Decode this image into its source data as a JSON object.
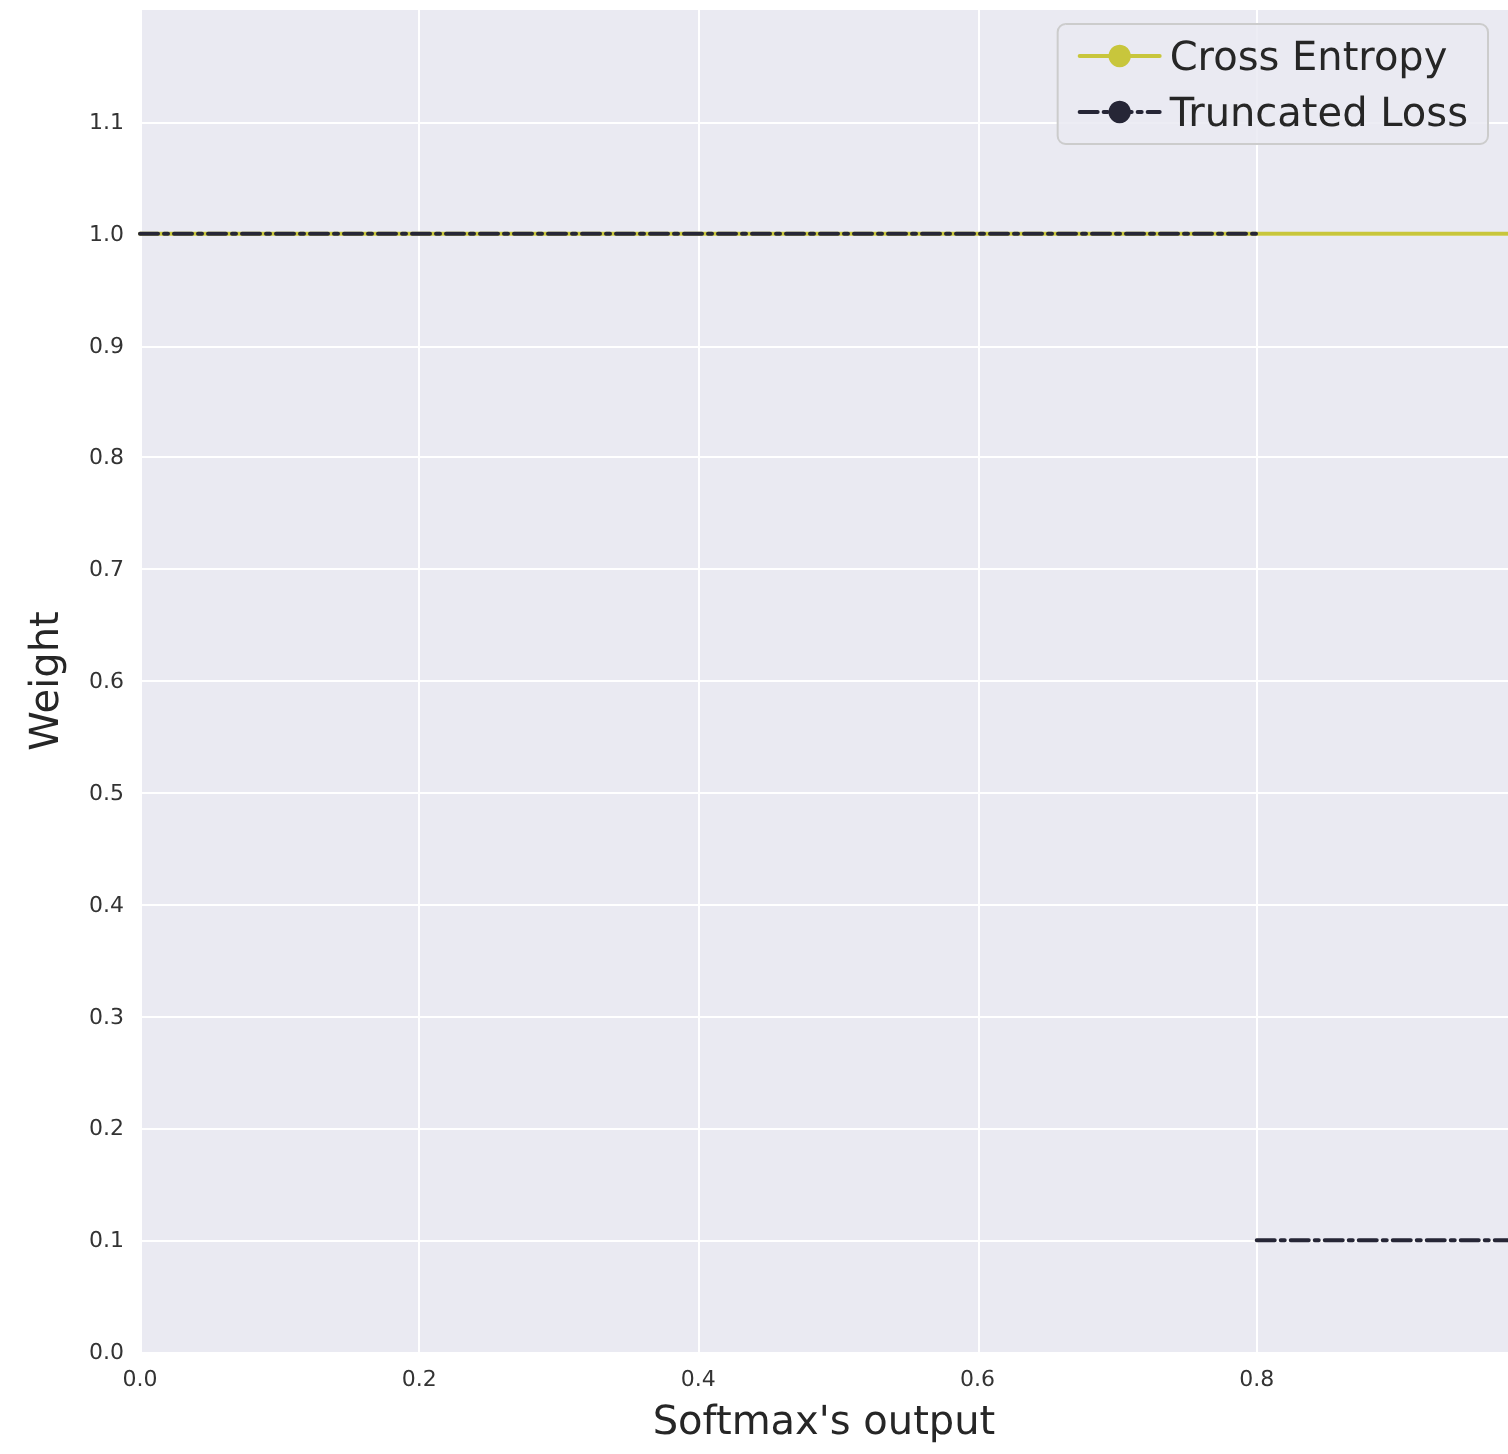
{
  "chart_data": {
    "type": "line",
    "xlabel": "Softmax's output",
    "ylabel": "Weight",
    "xlim": [
      0,
      0.98
    ],
    "xticks": [
      {
        "value": 0,
        "label": "0.0"
      },
      0.2,
      0.4,
      0.6,
      0.8
    ],
    "ylim": [
      0,
      1.2
    ],
    "yticks": [
      {
        "value": 0,
        "label": "0.0"
      },
      0.1,
      0.2,
      0.3,
      0.4,
      0.5,
      0.6,
      0.7,
      0.8,
      0.9,
      {
        "value": 1,
        "label": "1.0"
      },
      1.1
    ],
    "grid": true,
    "legend": "top right",
    "marker": "none",
    "series": [
      {
        "name": "Cross Entropy",
        "color": "#c8c63c",
        "line_style": "solid",
        "x": [
          0,
          0.98
        ],
        "values": [
          1,
          1
        ]
      },
      {
        "name": "Truncated Loss",
        "color": "#262636",
        "line_style": "dashed",
        "x": [
          0,
          0.8,
          null,
          0.8,
          0.98
        ],
        "values": [
          1,
          1,
          null,
          0.1,
          0.1
        ]
      }
    ]
  }
}
